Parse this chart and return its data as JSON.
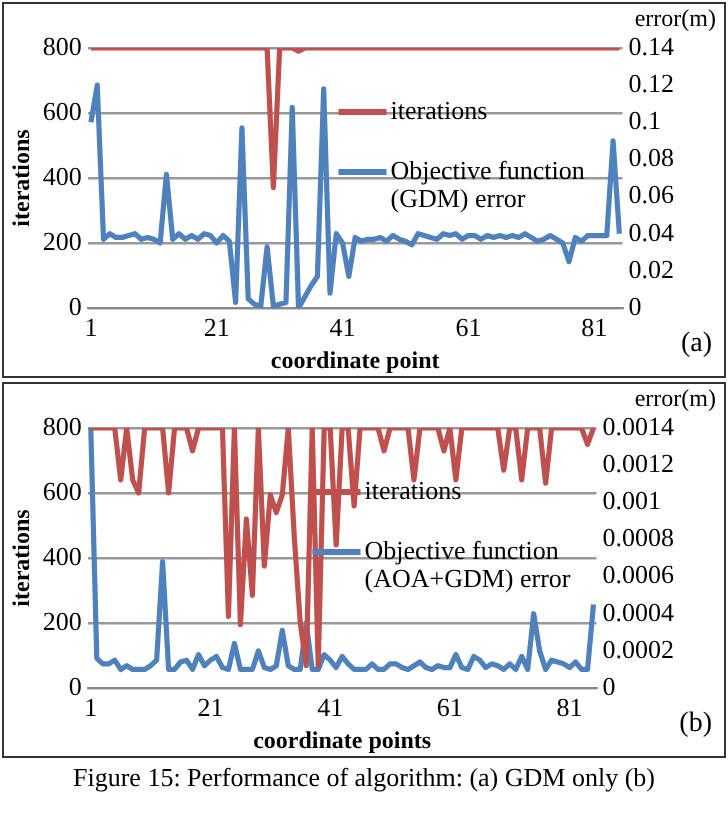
{
  "chart_data": [
    {
      "type": "line",
      "xlabel": "coordinate point",
      "ylabel": "iterations",
      "y2label": "error(m)",
      "annotations": [
        "(a)"
      ],
      "x": [
        1,
        2,
        3,
        4,
        5,
        6,
        7,
        8,
        9,
        10,
        11,
        12,
        13,
        14,
        15,
        16,
        17,
        18,
        19,
        20,
        21,
        22,
        23,
        24,
        25,
        26,
        27,
        28,
        29,
        30,
        31,
        32,
        33,
        34,
        35,
        36,
        37,
        38,
        39,
        40,
        41,
        42,
        43,
        44,
        45,
        46,
        47,
        48,
        49,
        50,
        51,
        52,
        53,
        54,
        55,
        56,
        57,
        58,
        59,
        60,
        61,
        62,
        63,
        64,
        65,
        66,
        67,
        68,
        69,
        70,
        71,
        72,
        73,
        74,
        75,
        76,
        77,
        78,
        79,
        80,
        81,
        82,
        83,
        84,
        85
      ],
      "series": [
        {
          "name": "iterations",
          "color": "#c0504d",
          "values": [
            800,
            800,
            800,
            800,
            800,
            800,
            800,
            800,
            800,
            800,
            800,
            800,
            800,
            800,
            800,
            800,
            800,
            800,
            800,
            800,
            800,
            800,
            800,
            800,
            800,
            800,
            800,
            800,
            800,
            370,
            800,
            800,
            800,
            790,
            800,
            800,
            800,
            800,
            800,
            800,
            800,
            800,
            800,
            800,
            800,
            800,
            800,
            800,
            800,
            800,
            800,
            800,
            800,
            800,
            800,
            800,
            800,
            800,
            800,
            800,
            800,
            800,
            800,
            800,
            800,
            800,
            800,
            800,
            800,
            800,
            800,
            800,
            800,
            800,
            800,
            800,
            800,
            800,
            800,
            800,
            800,
            800,
            800,
            800,
            800
          ]
        },
        {
          "name": "Objective function (GDM) error",
          "color": "#4f81bd",
          "axis": "y2",
          "values": [
            0.1,
            0.12,
            0.037,
            0.04,
            0.038,
            0.038,
            0.039,
            0.04,
            0.037,
            0.038,
            0.037,
            0.035,
            0.072,
            0.037,
            0.04,
            0.037,
            0.039,
            0.037,
            0.04,
            0.039,
            0.035,
            0.039,
            0.036,
            0.003,
            0.097,
            0.005,
            0.002,
            0.001,
            0.033,
            0.001,
            0.002,
            0.003,
            0.108,
            0,
            0.006,
            0.012,
            0.017,
            0.118,
            0.008,
            0.04,
            0.035,
            0.017,
            0.038,
            0.036,
            0.037,
            0.037,
            0.038,
            0.036,
            0.039,
            0.037,
            0.036,
            0.034,
            0.04,
            0.039,
            0.038,
            0.037,
            0.04,
            0.039,
            0.04,
            0.037,
            0.039,
            0.039,
            0.037,
            0.039,
            0.038,
            0.039,
            0.038,
            0.039,
            0.038,
            0.04,
            0.038,
            0.036,
            0.037,
            0.039,
            0.037,
            0.035,
            0.025,
            0.038,
            0.036,
            0.039,
            0.039,
            0.039,
            0.039,
            0.09,
            0.04
          ]
        }
      ],
      "xlim": [
        0.5,
        85.5
      ],
      "xticks": [
        1,
        21,
        41,
        61,
        81
      ],
      "ylim": [
        0,
        800
      ],
      "yticks": [
        0,
        200,
        400,
        600,
        800
      ],
      "y2lim": [
        0,
        0.14
      ],
      "y2ticks": [
        0,
        0.02,
        0.04,
        0.06,
        0.08,
        0.1,
        0.12,
        0.14
      ],
      "grid": "y",
      "legend": "right",
      "marker": "none",
      "line_style": "solid"
    },
    {
      "type": "line",
      "xlabel": "coordinate points",
      "ylabel": "iterations",
      "y2label": "error(m)",
      "annotations": [
        "(b)",
        "Figure 15: Performance of algorithm: (a) GDM only (b)"
      ],
      "x": [
        1,
        2,
        3,
        4,
        5,
        6,
        7,
        8,
        9,
        10,
        11,
        12,
        13,
        14,
        15,
        16,
        17,
        18,
        19,
        20,
        21,
        22,
        23,
        24,
        25,
        26,
        27,
        28,
        29,
        30,
        31,
        32,
        33,
        34,
        35,
        36,
        37,
        38,
        39,
        40,
        41,
        42,
        43,
        44,
        45,
        46,
        47,
        48,
        49,
        50,
        51,
        52,
        53,
        54,
        55,
        56,
        57,
        58,
        59,
        60,
        61,
        62,
        63,
        64,
        65,
        66,
        67,
        68,
        69,
        70,
        71,
        72,
        73,
        74,
        75,
        76,
        77,
        78,
        79,
        80,
        81,
        82,
        83,
        84,
        85
      ],
      "series": [
        {
          "name": "iterations",
          "color": "#c0504d",
          "values": [
            800,
            800,
            800,
            800,
            800,
            640,
            800,
            640,
            600,
            800,
            800,
            800,
            800,
            600,
            800,
            800,
            800,
            730,
            800,
            800,
            800,
            800,
            800,
            220,
            800,
            195,
            520,
            285,
            800,
            375,
            594,
            540,
            594,
            800,
            466,
            200,
            69,
            800,
            69,
            800,
            800,
            440,
            800,
            800,
            560,
            800,
            800,
            800,
            800,
            730,
            800,
            800,
            800,
            800,
            640,
            800,
            800,
            800,
            800,
            730,
            800,
            640,
            800,
            800,
            800,
            800,
            800,
            800,
            800,
            670,
            800,
            800,
            640,
            800,
            800,
            800,
            630,
            800,
            800,
            800,
            800,
            800,
            800,
            750,
            800
          ]
        },
        {
          "name": "Objective function (AOA+GDM) error",
          "color": "#4f81bd",
          "axis": "y2",
          "values": [
            0.0014,
            0.00016,
            0.00013,
            0.00013,
            0.00015,
            0.0001,
            0.00012,
            0.0001,
            0.0001,
            0.0001,
            0.00012,
            0.00015,
            0.00068,
            0.0001,
            0.0001,
            0.00014,
            0.00015,
            0.0001,
            0.00018,
            0.00012,
            0.00015,
            0.00017,
            0.00011,
            0.0001,
            0.00024,
            0.0001,
            0.0001,
            0.0001,
            0.0002,
            0.00011,
            0.0001,
            0.00012,
            0.00031,
            0.00012,
            0.0001,
            0.0001,
            0.00035,
            0.0001,
            0.0001,
            0.00018,
            0.00015,
            0.00011,
            0.00017,
            0.00013,
            0.0001,
            0.0001,
            0.0001,
            0.00013,
            0.0001,
            0.0001,
            0.00013,
            0.00013,
            0.00011,
            0.0001,
            0.00012,
            0.00014,
            0.00011,
            0.0001,
            0.00012,
            0.00011,
            0.00011,
            0.00018,
            0.00011,
            0.0001,
            0.00017,
            0.00015,
            0.00011,
            0.00013,
            0.00012,
            0.0001,
            0.00013,
            0.0001,
            0.00017,
            0.0001,
            0.0004,
            0.0002,
            0.0001,
            0.00015,
            0.00014,
            0.00013,
            0.00011,
            0.00014,
            0.0001,
            0.0001,
            0.00045
          ]
        }
      ],
      "xlim": [
        0.5,
        85.5
      ],
      "xticks": [
        1,
        21,
        41,
        61,
        81
      ],
      "ylim": [
        0,
        800
      ],
      "yticks": [
        0,
        200,
        400,
        600,
        800
      ],
      "y2lim": [
        0,
        0.0014
      ],
      "y2ticks": [
        0,
        0.0002,
        0.0004,
        0.0006,
        0.0008,
        0.001,
        0.0012,
        0.0014
      ],
      "grid": "y",
      "legend": "right",
      "marker": "none",
      "line_style": "solid"
    }
  ]
}
